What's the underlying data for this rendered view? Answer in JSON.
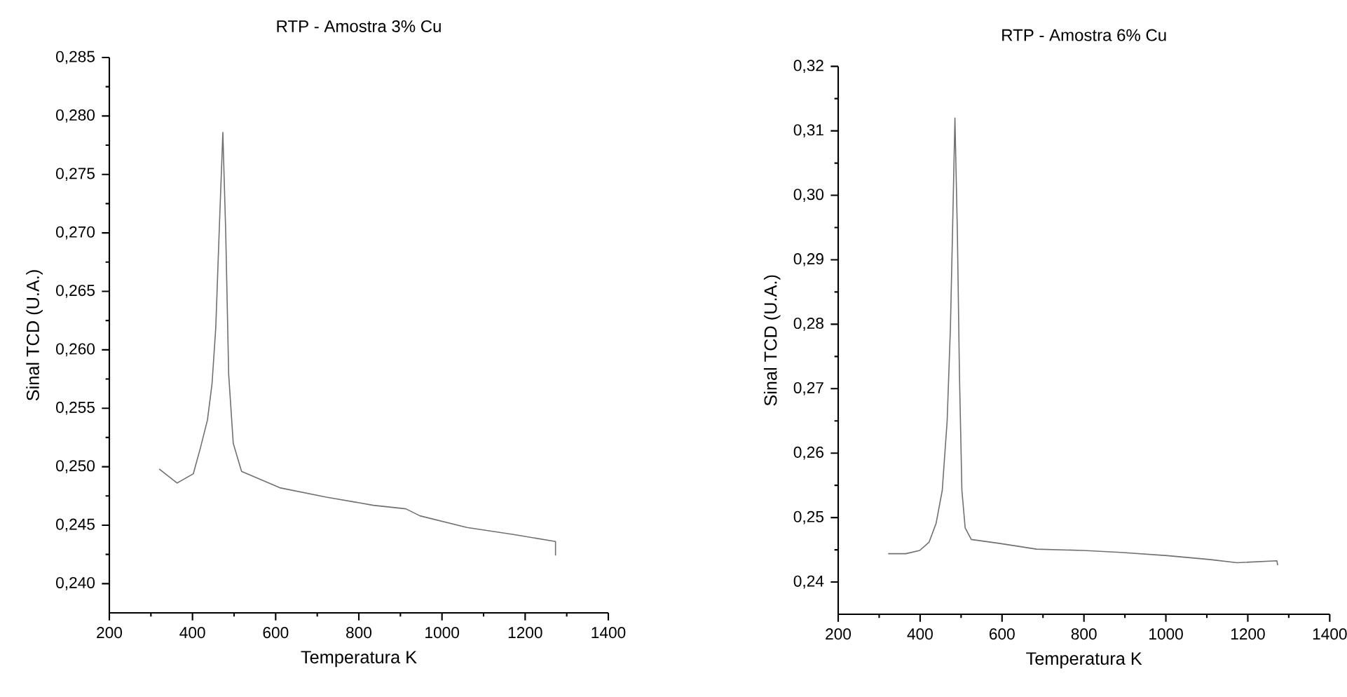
{
  "chart_data": [
    {
      "type": "line",
      "title": "RTP - Amostra 3% Cu",
      "xlabel": "Temperatura K",
      "ylabel": "Sinal TCD (U.A.)",
      "color": "#707070",
      "x": [
        320,
        363,
        402,
        419,
        436,
        447,
        456,
        464,
        473,
        480,
        487,
        498,
        518,
        610,
        722,
        835,
        913,
        947,
        1060,
        1172,
        1273,
        1273
      ],
      "values": [
        0.2498,
        0.2486,
        0.2494,
        0.2516,
        0.254,
        0.2571,
        0.2619,
        0.2699,
        0.2786,
        0.2699,
        0.2579,
        0.252,
        0.2496,
        0.2482,
        0.2474,
        0.2467,
        0.2464,
        0.2458,
        0.2448,
        0.2442,
        0.2436,
        0.2424
      ],
      "xlim": [
        200,
        1400
      ],
      "ylim": [
        0.2375,
        0.285
      ],
      "xticks": [
        200,
        400,
        600,
        800,
        1000,
        1200,
        1400
      ],
      "yticks": [
        {
          "value": 0.24,
          "label": "0,240"
        },
        {
          "value": 0.245,
          "label": "0,245"
        },
        {
          "value": 0.25,
          "label": "0,250"
        },
        {
          "value": 0.255,
          "label": "0,255"
        },
        {
          "value": 0.26,
          "label": "0,260"
        },
        {
          "value": 0.265,
          "label": "0,265"
        },
        {
          "value": 0.27,
          "label": "0,270"
        },
        {
          "value": 0.275,
          "label": "0,275"
        },
        {
          "value": 0.28,
          "label": "0,280"
        },
        {
          "value": 0.285,
          "label": "0,285"
        }
      ]
    },
    {
      "type": "line",
      "title": "RTP - Amostra 6% Cu",
      "xlabel": "Temperatura K",
      "ylabel": "Sinal TCD (U.A.)",
      "color": "#707070",
      "x": [
        322,
        365,
        399,
        422,
        439,
        454,
        466,
        474,
        479,
        485,
        491,
        496,
        502,
        510,
        525,
        593,
        684,
        798,
        889,
        1003,
        1106,
        1174,
        1271,
        1273
      ],
      "values": [
        0.2444,
        0.2444,
        0.2449,
        0.2462,
        0.2491,
        0.2542,
        0.265,
        0.2795,
        0.294,
        0.312,
        0.294,
        0.2723,
        0.2542,
        0.2484,
        0.2466,
        0.246,
        0.2451,
        0.2449,
        0.2446,
        0.2441,
        0.2435,
        0.243,
        0.2433,
        0.2426
      ],
      "xlim": [
        200,
        1400
      ],
      "ylim": [
        0.235,
        0.32
      ],
      "xticks": [
        200,
        400,
        600,
        800,
        1000,
        1200,
        1400
      ],
      "yticks": [
        {
          "value": 0.24,
          "label": "0,24"
        },
        {
          "value": 0.25,
          "label": "0,25"
        },
        {
          "value": 0.26,
          "label": "0,26"
        },
        {
          "value": 0.27,
          "label": "0,27"
        },
        {
          "value": 0.28,
          "label": "0,28"
        },
        {
          "value": 0.29,
          "label": "0,29"
        },
        {
          "value": 0.3,
          "label": "0,30"
        },
        {
          "value": 0.31,
          "label": "0,31"
        },
        {
          "value": 0.32,
          "label": "0,32"
        }
      ]
    }
  ]
}
